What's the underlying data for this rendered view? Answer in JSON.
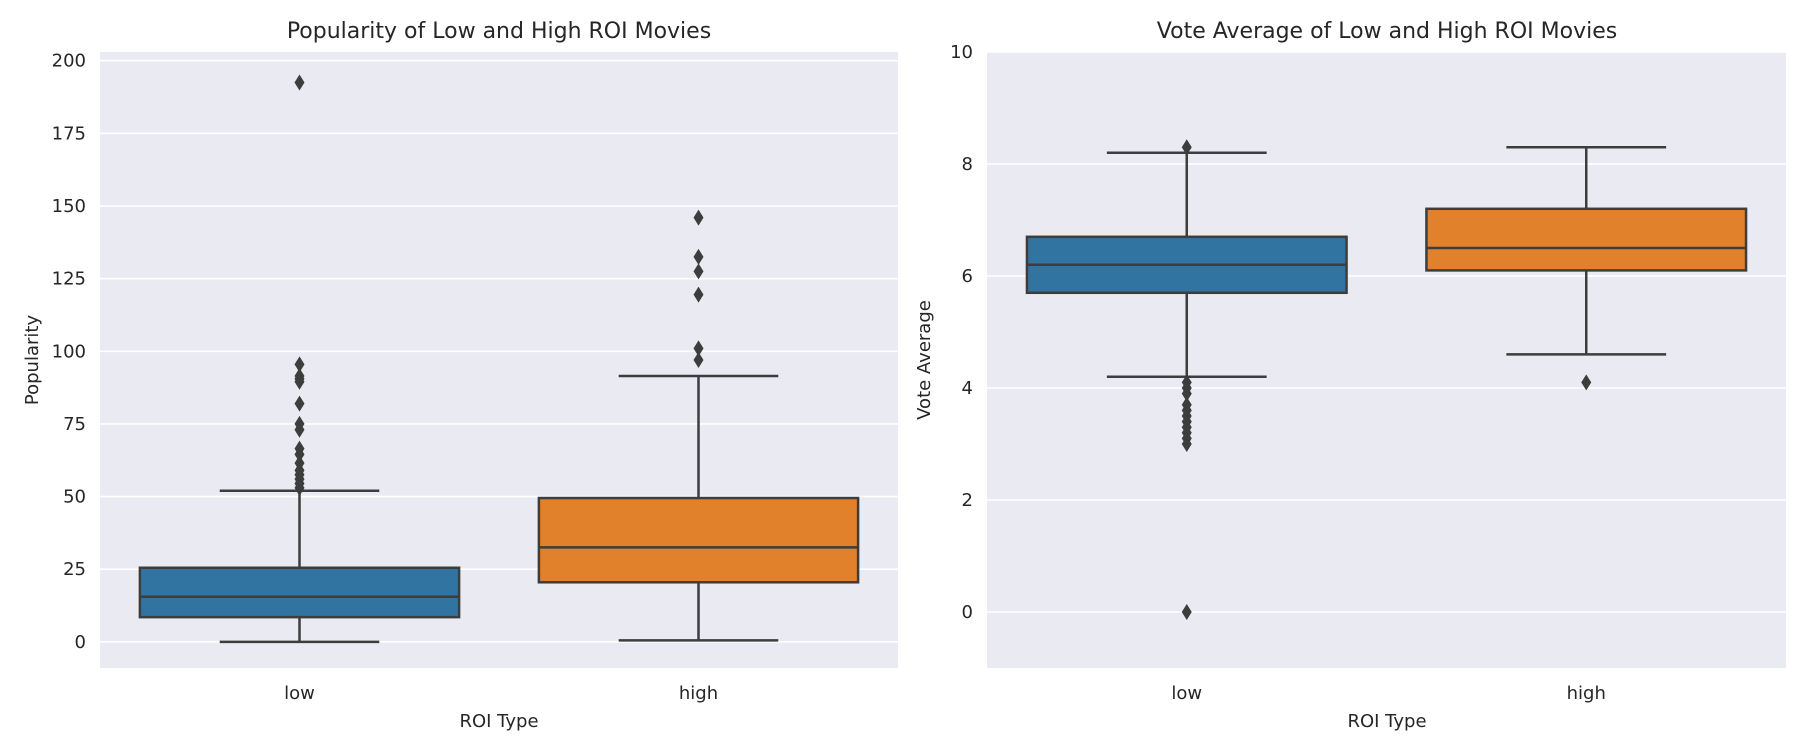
{
  "chart_data": [
    {
      "type": "box",
      "title": "Popularity of Low and High ROI Movies",
      "xlabel": "ROI Type",
      "ylabel": "Popularity",
      "categories": [
        "low",
        "high"
      ],
      "ylim": [
        -9,
        203
      ],
      "yticks": [
        0,
        25,
        50,
        75,
        100,
        125,
        150,
        175,
        200
      ],
      "grid": true,
      "colors": [
        "#3274a1",
        "#e1812c"
      ],
      "boxes": [
        {
          "category": "low",
          "whisker_low": 0,
          "q1": 8.5,
          "median": 15.5,
          "q3": 25.5,
          "whisker_high": 52,
          "outliers": [
            192.5,
            95.5,
            91.5,
            90.5,
            89.5,
            82,
            75,
            73,
            66.5,
            64.5,
            61.5,
            59,
            57.5,
            56,
            54.5,
            53
          ]
        },
        {
          "category": "high",
          "whisker_low": 0.5,
          "q1": 20.5,
          "median": 32.5,
          "q3": 49.5,
          "whisker_high": 91.5,
          "outliers": [
            146,
            132.5,
            127.5,
            119.5,
            101,
            97
          ]
        }
      ]
    },
    {
      "type": "box",
      "title": "Vote Average of Low and High ROI Movies",
      "xlabel": "ROI Type",
      "ylabel": "Vote Average",
      "categories": [
        "low",
        "high"
      ],
      "ylim": [
        -1,
        10
      ],
      "yticks": [
        0,
        2,
        4,
        6,
        8,
        10
      ],
      "grid": true,
      "colors": [
        "#3274a1",
        "#e1812c"
      ],
      "boxes": [
        {
          "category": "low",
          "whisker_low": 4.2,
          "q1": 5.7,
          "median": 6.2,
          "q3": 6.7,
          "whisker_high": 8.2,
          "outliers": [
            8.3,
            4.1,
            4.0,
            3.9,
            3.7,
            3.6,
            3.5,
            3.4,
            3.3,
            3.2,
            3.1,
            3.0,
            0.0
          ]
        },
        {
          "category": "high",
          "whisker_low": 4.6,
          "q1": 6.1,
          "median": 6.5,
          "q3": 7.2,
          "whisker_high": 8.3,
          "outliers": [
            4.1
          ]
        }
      ]
    }
  ]
}
